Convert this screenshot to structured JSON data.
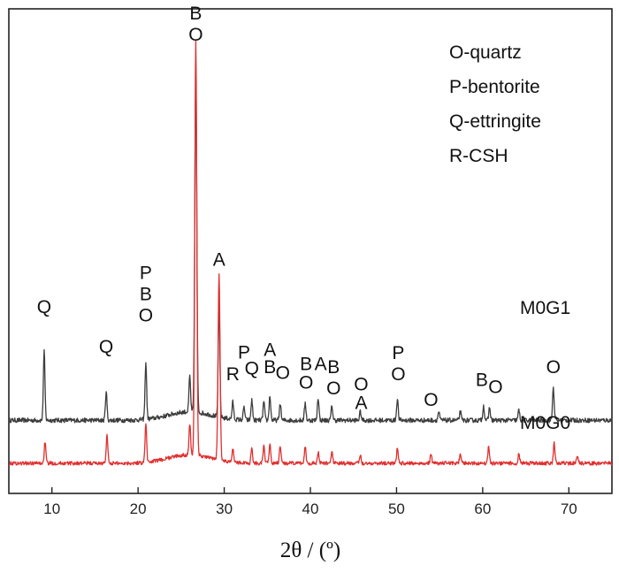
{
  "chart_data": {
    "type": "line",
    "xlabel": "2θ / (º)",
    "xlim": [
      5,
      75
    ],
    "x_ticks": [
      10,
      20,
      30,
      40,
      50,
      60,
      70
    ],
    "legend_placement": "top-right",
    "legend_entries": [
      "O-quartz",
      "P-bentorite",
      "Q-ettringite",
      "R-CSH"
    ],
    "series": [
      {
        "name": "M0G1",
        "color": "#3d3d3d",
        "baseline": 35,
        "noise": 1.6,
        "peaks": [
          {
            "x": 9.1,
            "h": 48
          },
          {
            "x": 16.3,
            "h": 20
          },
          {
            "x": 20.9,
            "h": 40
          },
          {
            "x": 26.0,
            "h": 25
          },
          {
            "x": 26.7,
            "h": 240
          },
          {
            "x": 29.4,
            "h": 82
          },
          {
            "x": 31.0,
            "h": 12
          },
          {
            "x": 32.3,
            "h": 9
          },
          {
            "x": 33.2,
            "h": 14
          },
          {
            "x": 34.6,
            "h": 13
          },
          {
            "x": 35.3,
            "h": 17
          },
          {
            "x": 36.5,
            "h": 12
          },
          {
            "x": 39.4,
            "h": 12
          },
          {
            "x": 40.9,
            "h": 16
          },
          {
            "x": 42.5,
            "h": 10
          },
          {
            "x": 45.8,
            "h": 6
          },
          {
            "x": 50.1,
            "h": 15
          },
          {
            "x": 54.9,
            "h": 6
          },
          {
            "x": 57.4,
            "h": 6
          },
          {
            "x": 60.1,
            "h": 10
          },
          {
            "x": 60.8,
            "h": 9
          },
          {
            "x": 64.2,
            "h": 7
          },
          {
            "x": 68.2,
            "h": 23
          }
        ]
      },
      {
        "name": "M0G0",
        "color": "#e03030",
        "baseline": 5,
        "noise": 1.3,
        "peaks": [
          {
            "x": 9.2,
            "h": 15
          },
          {
            "x": 16.4,
            "h": 20
          },
          {
            "x": 20.9,
            "h": 27
          },
          {
            "x": 26.0,
            "h": 22
          },
          {
            "x": 26.7,
            "h": 290
          },
          {
            "x": 29.4,
            "h": 130
          },
          {
            "x": 31.0,
            "h": 10
          },
          {
            "x": 33.2,
            "h": 11
          },
          {
            "x": 34.6,
            "h": 12
          },
          {
            "x": 35.3,
            "h": 14
          },
          {
            "x": 36.5,
            "h": 12
          },
          {
            "x": 39.4,
            "h": 12
          },
          {
            "x": 40.9,
            "h": 8
          },
          {
            "x": 42.5,
            "h": 9
          },
          {
            "x": 45.8,
            "h": 6
          },
          {
            "x": 50.1,
            "h": 11
          },
          {
            "x": 54.0,
            "h": 6
          },
          {
            "x": 57.4,
            "h": 6
          },
          {
            "x": 60.7,
            "h": 12
          },
          {
            "x": 64.2,
            "h": 7
          },
          {
            "x": 68.3,
            "h": 14
          },
          {
            "x": 71.0,
            "h": 5
          }
        ]
      }
    ],
    "peak_annotations": [
      {
        "lines": [
          "Q"
        ],
        "x": 9.1,
        "y": 110
      },
      {
        "lines": [
          "Q"
        ],
        "x": 16.3,
        "y": 82
      },
      {
        "lines": [
          "P",
          "B",
          "O"
        ],
        "x": 20.9,
        "y": 104
      },
      {
        "lines": [
          "B",
          "O"
        ],
        "x": 26.7,
        "y": 300
      },
      {
        "lines": [
          "A"
        ],
        "x": 29.4,
        "y": 143
      },
      {
        "lines": [
          "R"
        ],
        "x": 31.0,
        "y": 63
      },
      {
        "lines": [
          "P"
        ],
        "x": 32.3,
        "y": 78
      },
      {
        "lines": [
          "Q"
        ],
        "x": 33.2,
        "y": 67
      },
      {
        "lines": [
          "A"
        ],
        "x": 35.3,
        "y": 80
      },
      {
        "lines": [
          "B"
        ],
        "x": 35.3,
        "y": 68
      },
      {
        "lines": [
          "O"
        ],
        "x": 36.8,
        "y": 64
      },
      {
        "lines": [
          "B"
        ],
        "x": 39.5,
        "y": 70
      },
      {
        "lines": [
          "O"
        ],
        "x": 39.5,
        "y": 57
      },
      {
        "lines": [
          "A"
        ],
        "x": 41.2,
        "y": 70
      },
      {
        "lines": [
          "B"
        ],
        "x": 42.7,
        "y": 68
      },
      {
        "lines": [
          "O"
        ],
        "x": 42.7,
        "y": 53
      },
      {
        "lines": [
          "O"
        ],
        "x": 45.9,
        "y": 56
      },
      {
        "lines": [
          "A"
        ],
        "x": 45.9,
        "y": 43
      },
      {
        "lines": [
          "P",
          "O"
        ],
        "x": 50.2,
        "y": 63
      },
      {
        "lines": [
          "O"
        ],
        "x": 54.0,
        "y": 45
      },
      {
        "lines": [
          "B"
        ],
        "x": 59.9,
        "y": 59
      },
      {
        "lines": [
          "O"
        ],
        "x": 61.5,
        "y": 54
      },
      {
        "lines": [
          "O"
        ],
        "x": 68.2,
        "y": 68
      }
    ]
  }
}
